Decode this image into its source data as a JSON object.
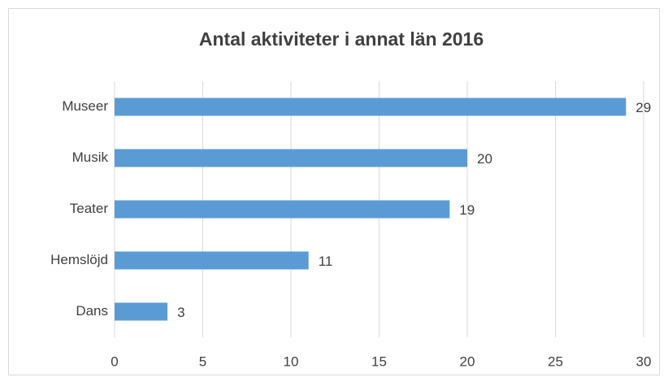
{
  "chart_data": {
    "type": "bar",
    "orientation": "horizontal",
    "title": "Antal aktiviteter i annat län 2016",
    "categories": [
      "Museer",
      "Musik",
      "Teater",
      "Hemslöjd",
      "Dans"
    ],
    "values": [
      29,
      20,
      19,
      11,
      3
    ],
    "color": "#5b9bd5",
    "xlim": [
      0,
      30
    ],
    "xticks": [
      0,
      5,
      10,
      15,
      20,
      25,
      30
    ],
    "grid": true
  }
}
